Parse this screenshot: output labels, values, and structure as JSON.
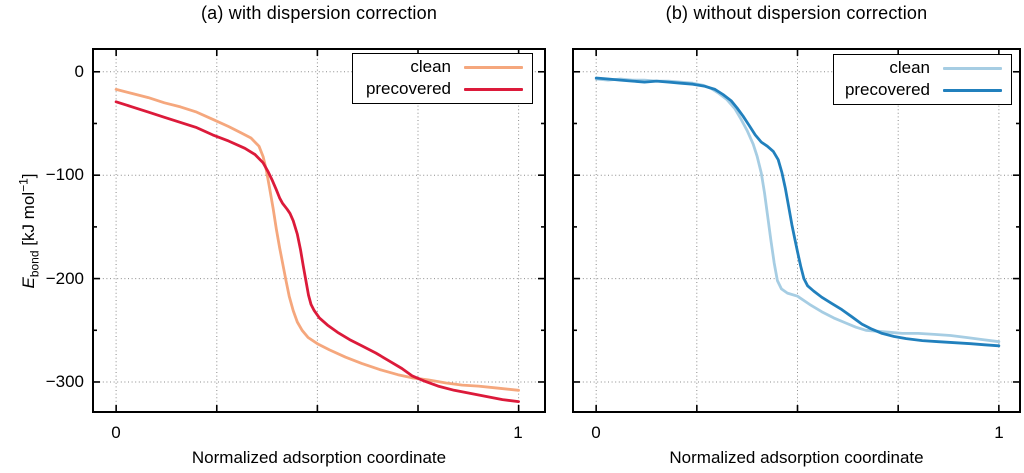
{
  "figure": {
    "background": "#ffffff",
    "x_axis_label": "Normalized adsorption coordinate",
    "y_axis_label": {
      "variable": "E",
      "subscript": "bond",
      "unit_prefix": " [kJ mol",
      "unit_sup": "−1",
      "unit_suffix": "]"
    }
  },
  "chart_data": [
    {
      "type": "line",
      "title": "(a) with dispersion correction",
      "xlabel": "Normalized adsorption coordinate",
      "ylabel": "E_bond [kJ mol^-1]",
      "xlim": [
        -0.06,
        1.068
      ],
      "ylim": [
        -330,
        23
      ],
      "grid": true,
      "legend_position": "top-right",
      "x_ticks": [
        0,
        0.25,
        0.5,
        0.75,
        1
      ],
      "x_tick_labels": [
        "0",
        "1"
      ],
      "y_ticks": [
        0,
        -100,
        -200,
        -300
      ],
      "y_minor_ticks": [
        -50,
        -150,
        -250
      ],
      "y_tick_labels": [
        "0",
        "−100",
        "−200",
        "−300"
      ],
      "series": [
        {
          "name": "clean",
          "color": "#f5a77d",
          "points": [
            [
              0.0,
              -17
            ],
            [
              0.04,
              -21
            ],
            [
              0.08,
              -25
            ],
            [
              0.12,
              -30
            ],
            [
              0.16,
              -34
            ],
            [
              0.2,
              -39
            ],
            [
              0.24,
              -46
            ],
            [
              0.28,
              -53
            ],
            [
              0.31,
              -59
            ],
            [
              0.335,
              -64
            ],
            [
              0.355,
              -72
            ],
            [
              0.365,
              -82
            ],
            [
              0.373,
              -95
            ],
            [
              0.381,
              -112
            ],
            [
              0.39,
              -132
            ],
            [
              0.398,
              -152
            ],
            [
              0.406,
              -170
            ],
            [
              0.414,
              -186
            ],
            [
              0.422,
              -202
            ],
            [
              0.43,
              -217
            ],
            [
              0.44,
              -231
            ],
            [
              0.45,
              -242
            ],
            [
              0.462,
              -250
            ],
            [
              0.477,
              -257
            ],
            [
              0.5,
              -263
            ],
            [
              0.53,
              -269
            ],
            [
              0.57,
              -276
            ],
            [
              0.61,
              -282
            ],
            [
              0.655,
              -288
            ],
            [
              0.7,
              -293
            ],
            [
              0.735,
              -296
            ],
            [
              0.775,
              -298
            ],
            [
              0.82,
              -301
            ],
            [
              0.86,
              -303
            ],
            [
              0.9,
              -304
            ],
            [
              0.95,
              -306
            ],
            [
              1.0,
              -308
            ]
          ]
        },
        {
          "name": "precovered",
          "color": "#dc1a3a",
          "points": [
            [
              0.0,
              -29
            ],
            [
              0.04,
              -34
            ],
            [
              0.08,
              -39
            ],
            [
              0.12,
              -44
            ],
            [
              0.16,
              -49
            ],
            [
              0.2,
              -54
            ],
            [
              0.24,
              -61
            ],
            [
              0.28,
              -67
            ],
            [
              0.32,
              -74
            ],
            [
              0.345,
              -80
            ],
            [
              0.365,
              -88
            ],
            [
              0.378,
              -97
            ],
            [
              0.388,
              -105
            ],
            [
              0.398,
              -114
            ],
            [
              0.406,
              -122
            ],
            [
              0.413,
              -127
            ],
            [
              0.425,
              -133
            ],
            [
              0.432,
              -137
            ],
            [
              0.44,
              -144
            ],
            [
              0.45,
              -157
            ],
            [
              0.458,
              -172
            ],
            [
              0.465,
              -188
            ],
            [
              0.472,
              -203
            ],
            [
              0.478,
              -216
            ],
            [
              0.484,
              -225
            ],
            [
              0.492,
              -231
            ],
            [
              0.505,
              -238
            ],
            [
              0.525,
              -245
            ],
            [
              0.55,
              -252
            ],
            [
              0.58,
              -259
            ],
            [
              0.61,
              -265
            ],
            [
              0.645,
              -272
            ],
            [
              0.68,
              -280
            ],
            [
              0.71,
              -287
            ],
            [
              0.735,
              -294
            ],
            [
              0.765,
              -299
            ],
            [
              0.8,
              -304
            ],
            [
              0.84,
              -308
            ],
            [
              0.88,
              -311
            ],
            [
              0.92,
              -314
            ],
            [
              0.96,
              -317
            ],
            [
              1.0,
              -319
            ]
          ]
        }
      ]
    },
    {
      "type": "line",
      "title": "(b) without dispersion correction",
      "xlabel": "Normalized adsorption coordinate",
      "ylabel": "E_bond [kJ mol^-1]",
      "xlim": [
        -0.06,
        1.055
      ],
      "ylim": [
        -330,
        23
      ],
      "grid": true,
      "legend_position": "top-right",
      "x_ticks": [
        0,
        0.25,
        0.5,
        0.75,
        1
      ],
      "x_tick_labels": [
        "0",
        "1"
      ],
      "y_ticks": [
        0,
        -100,
        -200,
        -300
      ],
      "y_minor_ticks": [
        -50,
        -150,
        -250
      ],
      "y_tick_labels": [],
      "series": [
        {
          "name": "clean",
          "color": "#a6cde3",
          "points": [
            [
              0.0,
              -7
            ],
            [
              0.03,
              -8
            ],
            [
              0.06,
              -7
            ],
            [
              0.09,
              -8
            ],
            [
              0.12,
              -8
            ],
            [
              0.15,
              -9
            ],
            [
              0.18,
              -9
            ],
            [
              0.21,
              -10
            ],
            [
              0.24,
              -11
            ],
            [
              0.265,
              -13
            ],
            [
              0.285,
              -16
            ],
            [
              0.305,
              -21
            ],
            [
              0.325,
              -27
            ],
            [
              0.345,
              -36
            ],
            [
              0.36,
              -46
            ],
            [
              0.375,
              -57
            ],
            [
              0.39,
              -70
            ],
            [
              0.4,
              -82
            ],
            [
              0.41,
              -98
            ],
            [
              0.418,
              -117
            ],
            [
              0.426,
              -140
            ],
            [
              0.434,
              -163
            ],
            [
              0.442,
              -185
            ],
            [
              0.45,
              -202
            ],
            [
              0.46,
              -210
            ],
            [
              0.475,
              -214
            ],
            [
              0.5,
              -217
            ],
            [
              0.53,
              -225
            ],
            [
              0.56,
              -232
            ],
            [
              0.59,
              -238
            ],
            [
              0.62,
              -243
            ],
            [
              0.645,
              -247
            ],
            [
              0.67,
              -250
            ],
            [
              0.7,
              -251
            ],
            [
              0.73,
              -252
            ],
            [
              0.76,
              -253
            ],
            [
              0.8,
              -253
            ],
            [
              0.84,
              -254
            ],
            [
              0.88,
              -255
            ],
            [
              0.92,
              -257
            ],
            [
              0.96,
              -259
            ],
            [
              1.0,
              -261
            ]
          ]
        },
        {
          "name": "precovered",
          "color": "#2180bd",
          "points": [
            [
              0.0,
              -6
            ],
            [
              0.03,
              -7
            ],
            [
              0.06,
              -8
            ],
            [
              0.09,
              -9
            ],
            [
              0.12,
              -10
            ],
            [
              0.15,
              -9
            ],
            [
              0.18,
              -10
            ],
            [
              0.21,
              -11
            ],
            [
              0.24,
              -12
            ],
            [
              0.27,
              -14
            ],
            [
              0.295,
              -17
            ],
            [
              0.315,
              -22
            ],
            [
              0.335,
              -28
            ],
            [
              0.35,
              -35
            ],
            [
              0.365,
              -43
            ],
            [
              0.38,
              -52
            ],
            [
              0.395,
              -61
            ],
            [
              0.41,
              -68
            ],
            [
              0.425,
              -72
            ],
            [
              0.44,
              -77
            ],
            [
              0.452,
              -85
            ],
            [
              0.461,
              -97
            ],
            [
              0.47,
              -113
            ],
            [
              0.478,
              -130
            ],
            [
              0.486,
              -148
            ],
            [
              0.494,
              -163
            ],
            [
              0.5,
              -174
            ],
            [
              0.508,
              -188
            ],
            [
              0.516,
              -200
            ],
            [
              0.525,
              -207
            ],
            [
              0.54,
              -212
            ],
            [
              0.56,
              -218
            ],
            [
              0.585,
              -224
            ],
            [
              0.61,
              -230
            ],
            [
              0.635,
              -237
            ],
            [
              0.66,
              -244
            ],
            [
              0.685,
              -249
            ],
            [
              0.71,
              -253
            ],
            [
              0.74,
              -256
            ],
            [
              0.77,
              -258
            ],
            [
              0.81,
              -260
            ],
            [
              0.85,
              -261
            ],
            [
              0.89,
              -262
            ],
            [
              0.93,
              -263
            ],
            [
              0.965,
              -264
            ],
            [
              1.0,
              -265
            ]
          ]
        }
      ]
    }
  ]
}
